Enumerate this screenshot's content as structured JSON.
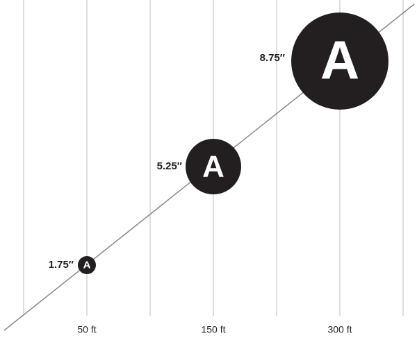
{
  "axis_labels": [
    "50 ft",
    "150 ft",
    "300 ft"
  ],
  "signs": [
    {
      "size": "1.75″",
      "letter": "A"
    },
    {
      "size": "5.25″",
      "letter": "A"
    },
    {
      "size": "8.75″",
      "letter": "A"
    }
  ]
}
